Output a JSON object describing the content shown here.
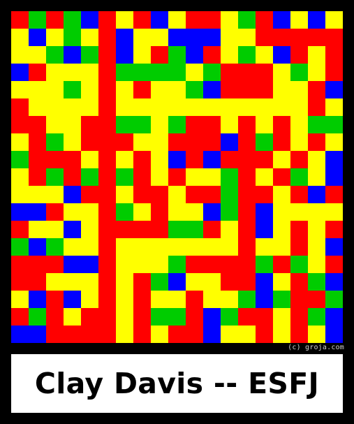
{
  "title": "Clay Davis -- ESFJ",
  "credit": "(c) groja.com",
  "palette": {
    "Y": "#ffff00",
    "R": "#ff0000",
    "G": "#00cc00",
    "B": "#0000ff"
  },
  "mosaic": {
    "rows": 19,
    "cols": 19,
    "cells": [
      "RGRGBRYRBYRRYGRBYBY",
      "YBYGYRBYYBBBYYRRRRR",
      "YYGBGRBYRGBRYGYBRYR",
      "BRYYYRGGGGYGRRRYGYR",
      "YYYGYRYRYYGBRRRYYRB",
      "RYYYYRYYYYYYYYYYYRY",
      "RRYYRRGGYGRRYRYRYGG",
      "YRGYRRRYYRRRBRGRYRY",
      "GRRRYRYRYBRBRRRYRYB",
      "YRGRGRGRYRYYGRYRGYB",
      "YYYBRRYRRYRRGRRYRBR",
      "BBRYYRGYRYYBGRBYYYY",
      "RYYBYRRRRGGRYRBYRYR",
      "GBGYYRYYYYYYYRYYRYB",
      "RRRBBRYYYGRRRRGRGYR",
      "RRYYYRYRGBYYRRBYRGB",
      "YBRBYRYRYYRYYGBGRRG",
      "RGRYRRYRGGRBGRRYRGB",
      "BBRRRRYRYRRBYYRYRYB"
    ]
  }
}
